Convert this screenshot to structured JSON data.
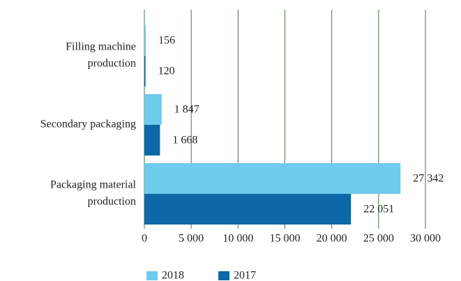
{
  "chart_data": {
    "type": "bar",
    "orientation": "horizontal",
    "categories": [
      [
        "Filling machine",
        "production"
      ],
      [
        "Secondary packaging"
      ],
      [
        "Packaging material",
        "production"
      ]
    ],
    "series": [
      {
        "name": "2018",
        "color": "#6ecbec",
        "values": [
          156,
          1847,
          27342
        ],
        "value_labels": [
          "156",
          "1 847",
          "27 342"
        ]
      },
      {
        "name": "2017",
        "color": "#0e67a6",
        "values": [
          120,
          1668,
          22051
        ],
        "value_labels": [
          "120",
          "1 668",
          "22 051"
        ]
      }
    ],
    "xlim": [
      0,
      30000
    ],
    "xticks": [
      0,
      {
        "value": 5000,
        "label": "5 000"
      },
      {
        "value": 10000,
        "label": "10 000"
      },
      {
        "value": 15000,
        "label": "15 000"
      },
      {
        "value": 20000,
        "label": "20 000"
      },
      {
        "value": 25000,
        "label": "25 000"
      },
      {
        "value": 30000,
        "label": "30 000"
      }
    ],
    "grid": true,
    "legend": "bottom"
  }
}
